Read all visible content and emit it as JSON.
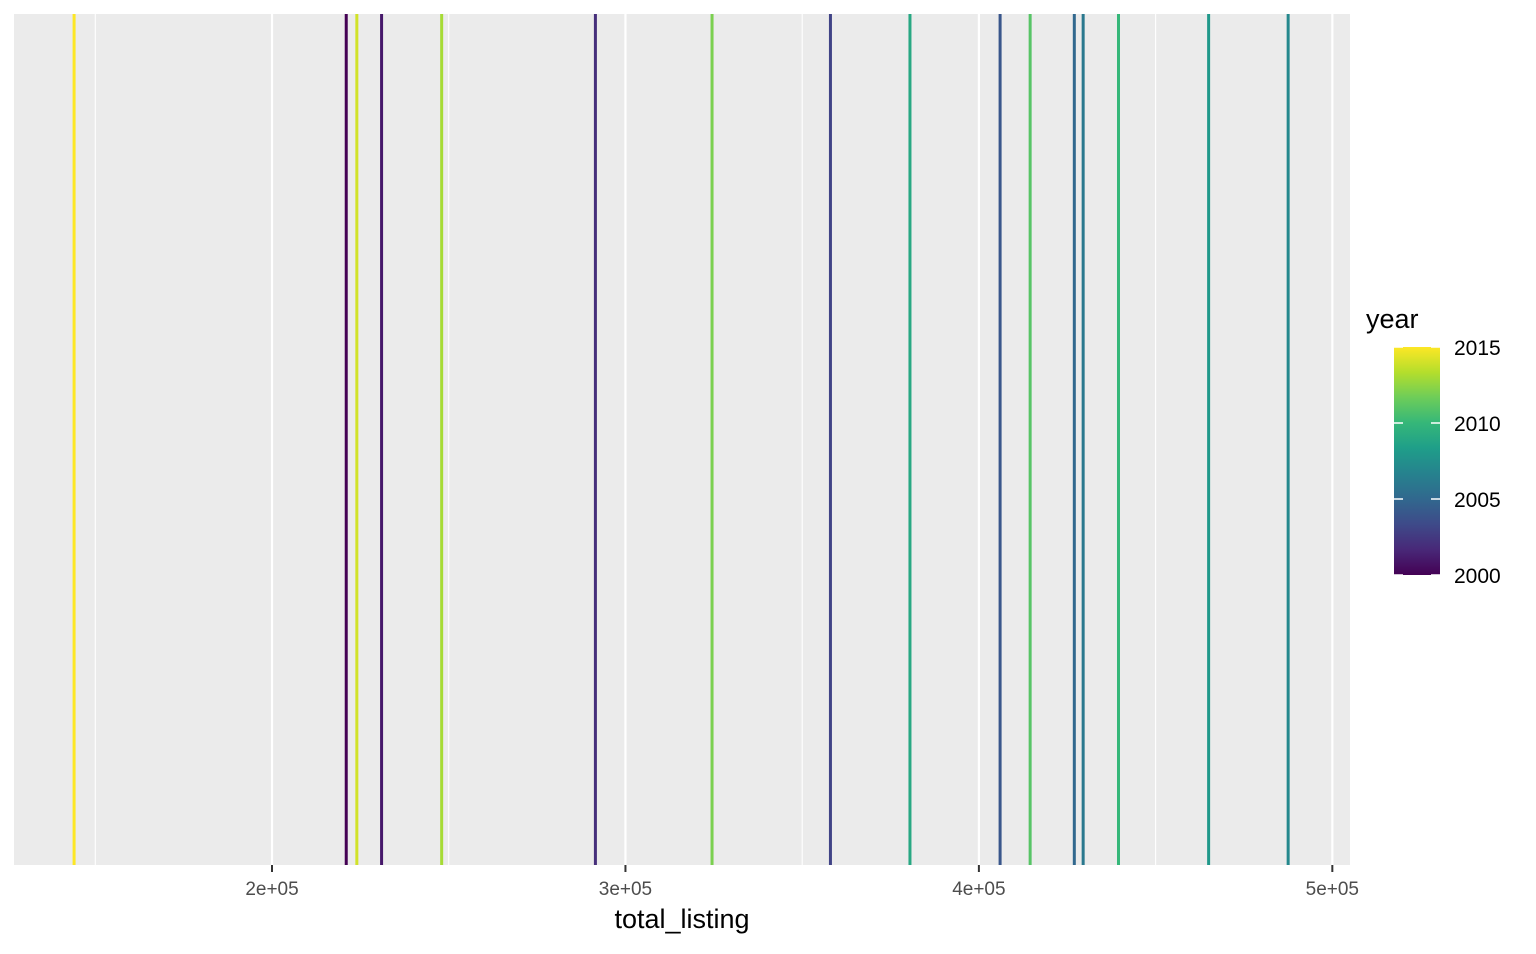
{
  "chart_data": {
    "type": "rug",
    "title": "",
    "xlabel": "total_listing",
    "ylabel": "",
    "xlim": [
      127000,
      505000
    ],
    "x_ticks": [
      200000,
      300000,
      400000,
      500000
    ],
    "x_tick_labels": [
      "2e+05",
      "3e+05",
      "4e+05",
      "5e+05"
    ],
    "grid": true,
    "legend": {
      "title": "year",
      "position": "right",
      "type": "colorbar",
      "range": [
        2000,
        2015
      ],
      "breaks": [
        2000,
        2005,
        2010,
        2015
      ],
      "break_labels": [
        "2000",
        "2005",
        "2010",
        "2015"
      ],
      "palette": "viridis",
      "colors": [
        "#440154",
        "#482878",
        "#3E4A89",
        "#31688E",
        "#26828E",
        "#1F9E89",
        "#35B779",
        "#6DCD59",
        "#B4DE2C",
        "#FDE725"
      ]
    },
    "points": [
      {
        "x": 221000,
        "year": 2000
      },
      {
        "x": 231000,
        "year": 2001
      },
      {
        "x": 291500,
        "year": 2002
      },
      {
        "x": 358000,
        "year": 2003
      },
      {
        "x": 406000,
        "year": 2004
      },
      {
        "x": 427000,
        "year": 2005
      },
      {
        "x": 429500,
        "year": 2006
      },
      {
        "x": 487500,
        "year": 2007
      },
      {
        "x": 465000,
        "year": 2008
      },
      {
        "x": 380500,
        "year": 2009
      },
      {
        "x": 439500,
        "year": 2010
      },
      {
        "x": 414500,
        "year": 2011
      },
      {
        "x": 324500,
        "year": 2012
      },
      {
        "x": 248000,
        "year": 2013
      },
      {
        "x": 224000,
        "year": 2014
      },
      {
        "x": 144000,
        "year": 2015
      }
    ]
  }
}
